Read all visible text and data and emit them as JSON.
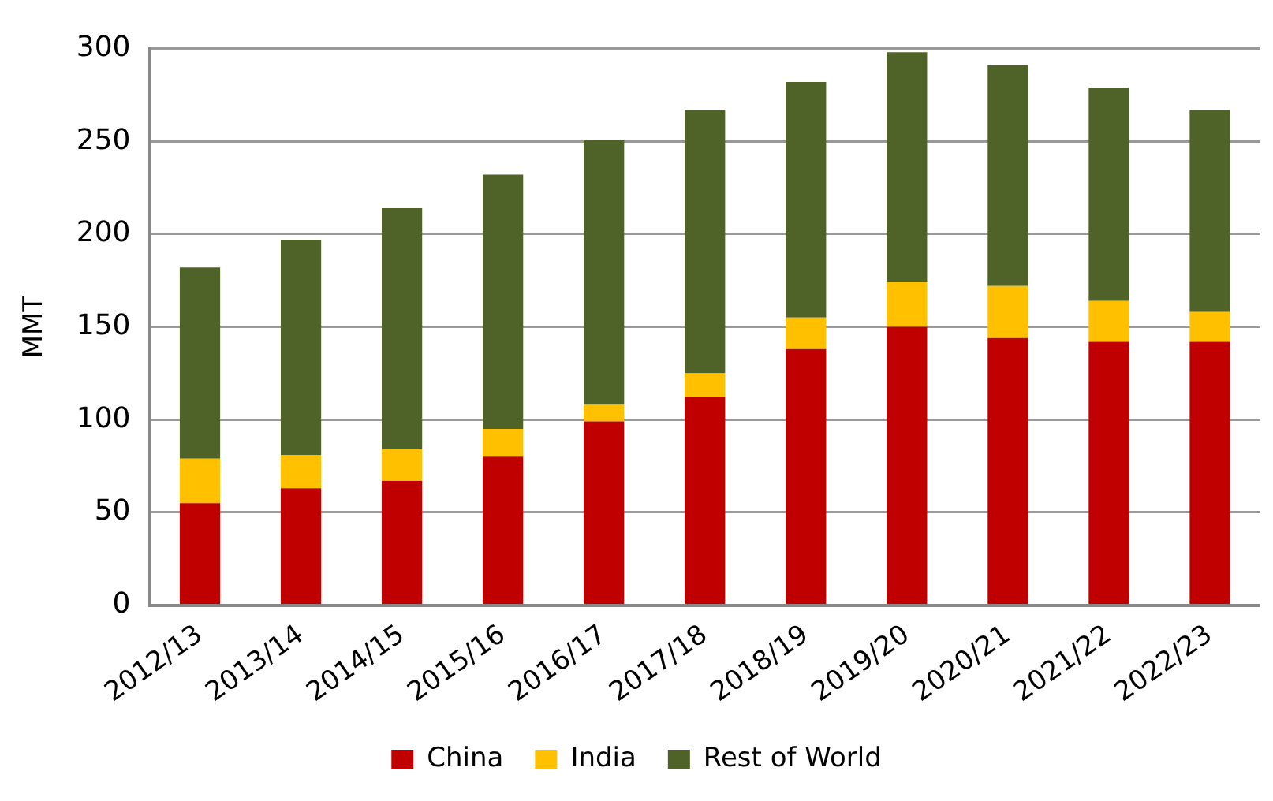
{
  "chart_data": {
    "type": "bar",
    "stacked": true,
    "ylabel": "MMT",
    "categories": [
      "2012/13",
      "2013/14",
      "2014/15",
      "2015/16",
      "2016/17",
      "2017/18",
      "2018/19",
      "2019/20",
      "2020/21",
      "2021/22",
      "2022/23"
    ],
    "series": [
      {
        "name": "China",
        "color": "#c00000",
        "values": [
          55,
          63,
          67,
          80,
          99,
          112,
          138,
          150,
          144,
          142,
          142
        ]
      },
      {
        "name": "India",
        "color": "#ffc000",
        "values": [
          24,
          18,
          17,
          15,
          9,
          13,
          17,
          24,
          28,
          22,
          16
        ]
      },
      {
        "name": "Rest of World",
        "color": "#4f6228",
        "values": [
          103,
          116,
          130,
          137,
          143,
          142,
          127,
          124,
          119,
          115,
          109
        ]
      }
    ],
    "ylim": [
      0,
      300
    ],
    "yticks": [
      0,
      50,
      100,
      150,
      200,
      250,
      300
    ],
    "grid": "y",
    "legend": "bottom"
  }
}
